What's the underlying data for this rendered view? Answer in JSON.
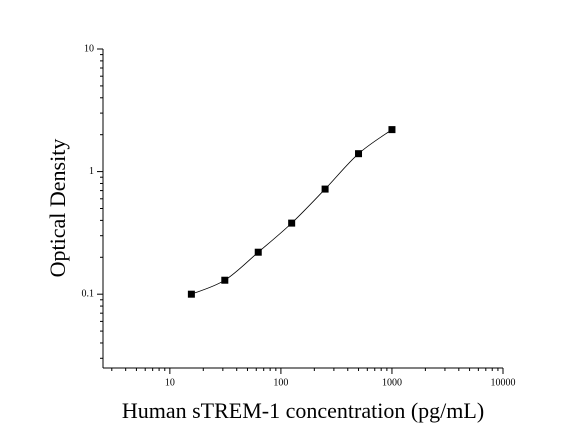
{
  "chart_data": {
    "type": "scatter",
    "xlabel": "Human sTREM-1 concentration (pg/mL)",
    "ylabel": "Optical Density",
    "x": [
      15.625,
      31.25,
      62.5,
      125,
      250,
      500,
      1000
    ],
    "values": [
      0.1,
      0.13,
      0.22,
      0.38,
      0.72,
      1.4,
      2.2
    ],
    "color": "#000000",
    "fit_curve": true,
    "xscale": "log",
    "yscale": "log",
    "xlim": [
      2.5,
      10000
    ],
    "xticks": [
      10,
      100,
      1000,
      10000
    ],
    "ylim": [
      0.025,
      10
    ],
    "yticks": [
      0.1,
      1,
      10
    ]
  }
}
